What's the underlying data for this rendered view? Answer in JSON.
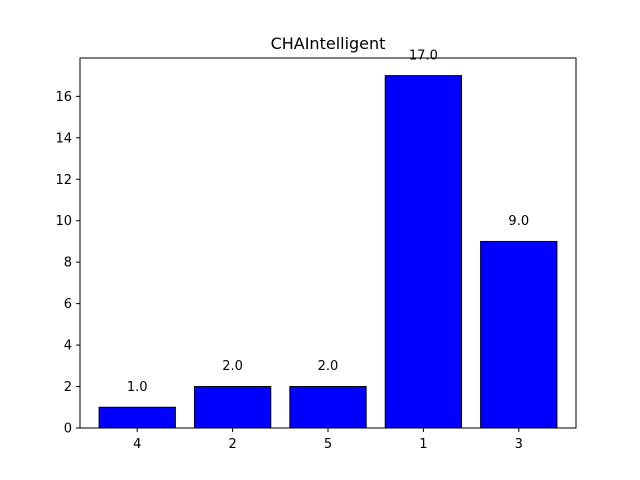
{
  "chart_data": {
    "type": "bar",
    "title": "CHAIntelligent",
    "xlabel": "",
    "ylabel": "",
    "categories": [
      "4",
      "2",
      "5",
      "1",
      "3"
    ],
    "values": [
      1.0,
      2.0,
      2.0,
      17.0,
      9.0
    ],
    "value_labels": [
      "1.0",
      "2.0",
      "2.0",
      "17.0",
      "9.0"
    ],
    "ylim": [
      0,
      17.85
    ],
    "yticks": [
      0,
      2,
      4,
      6,
      8,
      10,
      12,
      14,
      16
    ],
    "grid": false,
    "legend": "none",
    "bar_color": "#0000ff",
    "bar_edge_color": "#000000"
  }
}
